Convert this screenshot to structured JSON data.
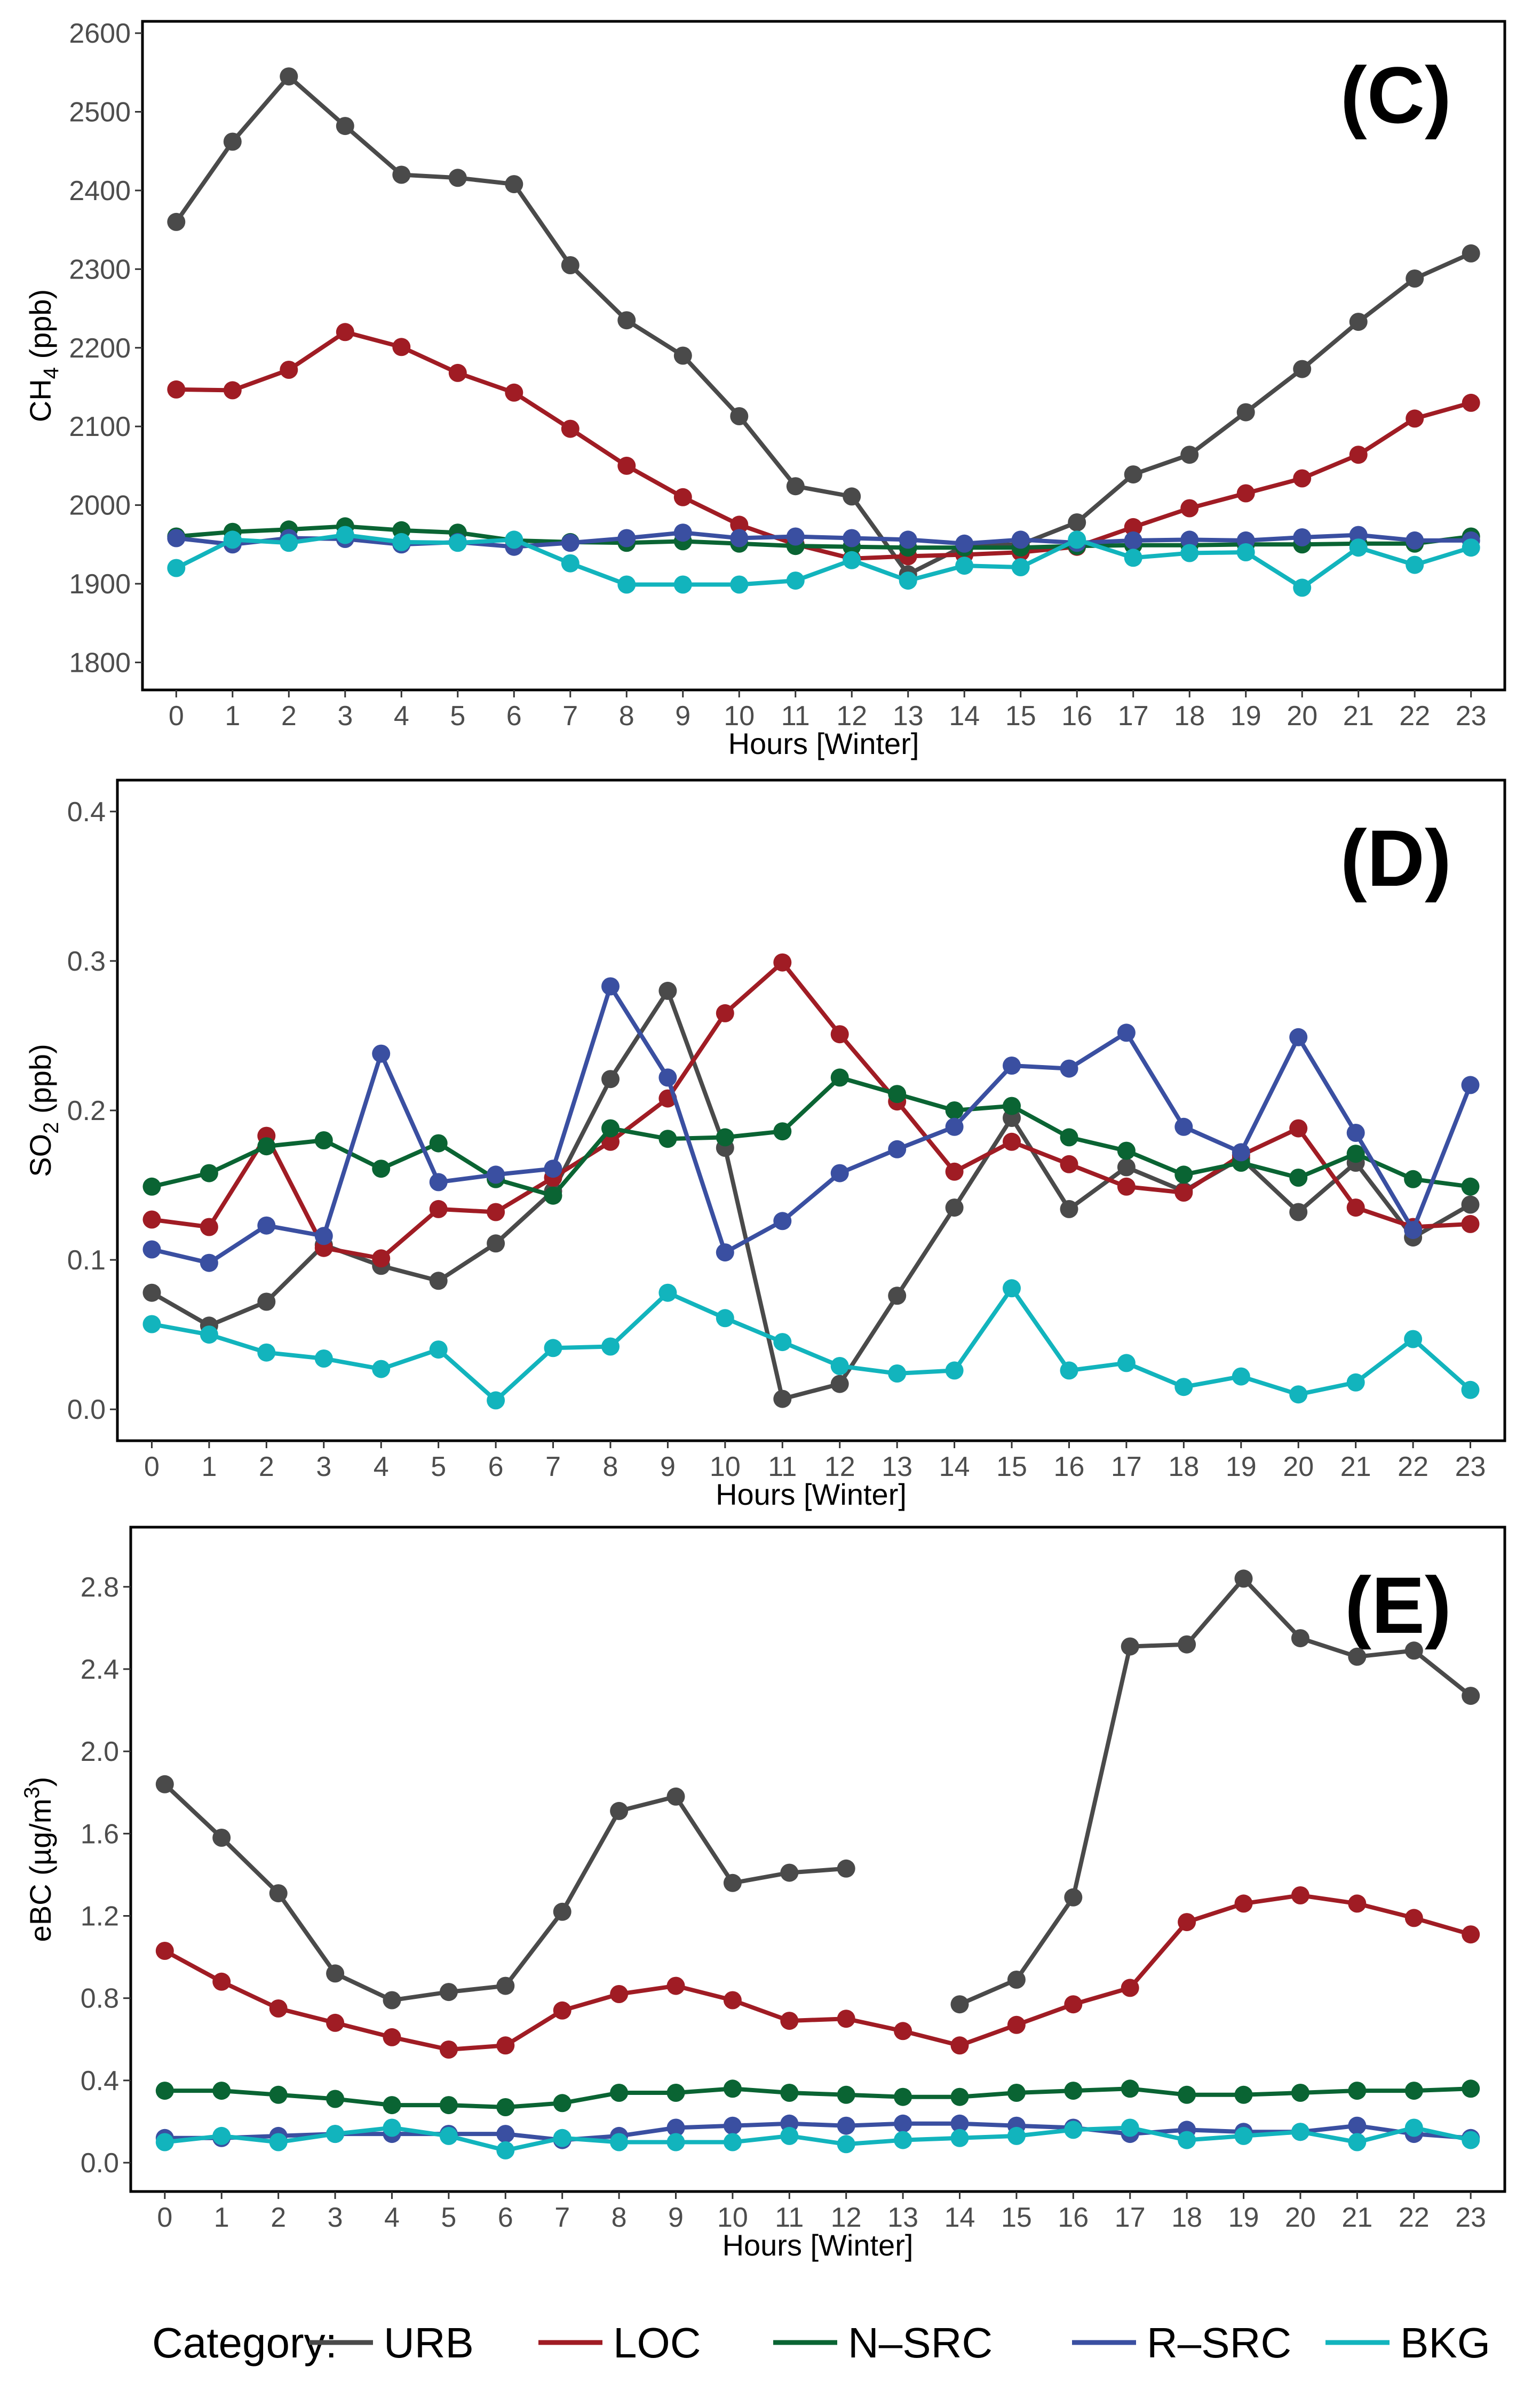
{
  "legend": {
    "title": "Category:",
    "items": [
      {
        "name": "URB",
        "color": "#4a4a4a"
      },
      {
        "name": "LOC",
        "color": "#a01c24"
      },
      {
        "name": "N–SRC",
        "color": "#0a6433"
      },
      {
        "name": "R–SRC",
        "color": "#3a4fa1"
      },
      {
        "name": "BKG",
        "color": "#12b4bd"
      }
    ]
  },
  "chart_data": [
    {
      "type": "line",
      "panel_label": "(C)",
      "xlabel": "Hours [Winter]",
      "ylabel_main": "CH",
      "ylabel_sub": "4",
      "ylabel_tail": " (ppb)",
      "x": [
        0,
        1,
        2,
        3,
        4,
        5,
        6,
        7,
        8,
        9,
        10,
        11,
        12,
        13,
        14,
        15,
        16,
        17,
        18,
        19,
        20,
        21,
        22,
        23
      ],
      "x_tick_labels": [
        "0",
        "1",
        "2",
        "3",
        "4",
        "5",
        "6",
        "7",
        "8",
        "9",
        "10",
        "11",
        "12",
        "13",
        "14",
        "15",
        "16",
        "17",
        "18",
        "19",
        "20",
        "21",
        "22",
        "23"
      ],
      "xlim": [
        -0.6,
        23.6
      ],
      "ylim": [
        1765,
        2615
      ],
      "y_ticks": [
        1800,
        1900,
        2000,
        2100,
        2200,
        2300,
        2400,
        2500,
        2600
      ],
      "y_tick_labels": [
        "1800",
        "1900",
        "2000",
        "2100",
        "2200",
        "2300",
        "2400",
        "2500",
        "2600"
      ],
      "series": [
        {
          "name": "URB",
          "values": [
            2360,
            2462,
            2545,
            2482,
            2420,
            2416,
            2408,
            2305,
            2235,
            2190,
            2113,
            2024,
            2011,
            1912,
            1948,
            1950,
            1978,
            2039,
            2064,
            2118,
            2173,
            2233,
            2288,
            2320
          ]
        },
        {
          "name": "LOC",
          "values": [
            2147,
            2146,
            2172,
            2220,
            2201,
            2168,
            2143,
            2097,
            2050,
            2010,
            1975,
            1950,
            1932,
            1935,
            1937,
            1940,
            1947,
            1972,
            1996,
            2015,
            2034,
            2064,
            2110,
            2130
          ]
        },
        {
          "name": "N–SRC",
          "values": [
            1960,
            1966,
            1969,
            1973,
            1968,
            1965,
            1955,
            1953,
            1952,
            1954,
            1951,
            1948,
            1947,
            1946,
            1946,
            1946,
            1948,
            1949,
            1949,
            1950,
            1950,
            1951,
            1951,
            1960
          ]
        },
        {
          "name": "R–SRC",
          "values": [
            1958,
            1950,
            1958,
            1957,
            1950,
            1953,
            1947,
            1952,
            1958,
            1965,
            1958,
            1960,
            1958,
            1956,
            1951,
            1956,
            1952,
            1955,
            1956,
            1955,
            1959,
            1962,
            1955,
            1955
          ]
        },
        {
          "name": "BKG",
          "values": [
            1920,
            1956,
            1952,
            1962,
            1953,
            1952,
            1956,
            1926,
            1899,
            1899,
            1899,
            1904,
            1930,
            1904,
            1923,
            1921,
            1956,
            1933,
            1939,
            1940,
            1895,
            1946,
            1924,
            1946
          ]
        }
      ]
    },
    {
      "type": "line",
      "panel_label": "(D)",
      "xlabel": "Hours [Winter]",
      "ylabel_main": "SO",
      "ylabel_sub": "2",
      "ylabel_tail": " (ppb)",
      "x": [
        0,
        1,
        2,
        3,
        4,
        5,
        6,
        7,
        8,
        9,
        10,
        11,
        12,
        13,
        14,
        15,
        16,
        17,
        18,
        19,
        20,
        21,
        22,
        23
      ],
      "x_tick_labels": [
        "0",
        "1",
        "2",
        "3",
        "4",
        "5",
        "6",
        "7",
        "8",
        "9",
        "10",
        "11",
        "12",
        "13",
        "14",
        "15",
        "16",
        "17",
        "18",
        "19",
        "20",
        "21",
        "22",
        "23"
      ],
      "xlim": [
        -0.6,
        23.6
      ],
      "ylim": [
        -0.021,
        0.421
      ],
      "y_ticks": [
        0.0,
        0.1,
        0.2,
        0.3,
        0.4
      ],
      "y_tick_labels": [
        "0.0",
        "0.1",
        "0.2",
        "0.3",
        "0.4"
      ],
      "series": [
        {
          "name": "URB",
          "values": [
            0.078,
            0.056,
            0.072,
            0.11,
            0.096,
            0.086,
            0.111,
            0.146,
            0.221,
            0.28,
            0.175,
            0.007,
            0.017,
            0.076,
            0.135,
            0.195,
            0.134,
            0.162,
            0.146,
            0.168,
            0.132,
            0.165,
            0.115,
            0.137
          ]
        },
        {
          "name": "LOC",
          "values": [
            0.127,
            0.122,
            0.183,
            0.108,
            0.101,
            0.134,
            0.132,
            0.155,
            0.179,
            0.208,
            0.265,
            0.299,
            0.251,
            0.206,
            0.159,
            0.179,
            0.164,
            0.149,
            0.145,
            0.17,
            0.188,
            0.135,
            0.122,
            0.124
          ]
        },
        {
          "name": "N–SRC",
          "values": [
            0.149,
            0.158,
            0.176,
            0.18,
            0.161,
            0.178,
            0.154,
            0.143,
            0.188,
            0.181,
            0.182,
            0.186,
            0.222,
            0.211,
            0.2,
            0.203,
            0.182,
            0.173,
            0.157,
            0.165,
            0.155,
            0.171,
            0.154,
            0.149
          ]
        },
        {
          "name": "R–SRC",
          "values": [
            0.107,
            0.098,
            0.123,
            0.116,
            0.238,
            0.152,
            0.157,
            0.161,
            0.283,
            0.222,
            0.105,
            0.126,
            0.158,
            0.174,
            0.189,
            0.23,
            0.228,
            0.252,
            0.189,
            0.172,
            0.249,
            0.185,
            0.12,
            0.217
          ]
        },
        {
          "name": "BKG",
          "values": [
            0.057,
            0.05,
            0.038,
            0.034,
            0.027,
            0.04,
            0.006,
            0.041,
            0.042,
            0.078,
            0.061,
            0.045,
            0.029,
            0.024,
            0.026,
            0.081,
            0.026,
            0.031,
            0.015,
            0.022,
            0.01,
            0.018,
            0.047,
            0.013
          ]
        }
      ]
    },
    {
      "type": "line",
      "panel_label": "(E)",
      "xlabel": "Hours [Winter]",
      "ylabel_main": "eBC (µg/m",
      "ylabel_sup": "3",
      "ylabel_tail": ")",
      "x": [
        0,
        1,
        2,
        3,
        4,
        5,
        6,
        7,
        8,
        9,
        10,
        11,
        12,
        13,
        14,
        15,
        16,
        17,
        18,
        19,
        20,
        21,
        22,
        23
      ],
      "x_tick_labels": [
        "0",
        "1",
        "2",
        "3",
        "4",
        "5",
        "6",
        "7",
        "8",
        "9",
        "10",
        "11",
        "12",
        "13",
        "14",
        "15",
        "16",
        "17",
        "18",
        "19",
        "20",
        "21",
        "22",
        "23"
      ],
      "xlim": [
        -0.6,
        23.6
      ],
      "ylim": [
        -0.14,
        3.09
      ],
      "y_ticks": [
        0.0,
        0.4,
        0.8,
        1.2,
        1.6,
        2.0,
        2.4,
        2.8
      ],
      "y_tick_labels": [
        "0.0",
        "0.4",
        "0.8",
        "1.2",
        "1.6",
        "2.0",
        "2.4",
        "2.8"
      ],
      "series": [
        {
          "name": "URB",
          "values": [
            1.84,
            1.58,
            1.31,
            0.92,
            0.79,
            0.83,
            0.86,
            1.22,
            1.71,
            1.78,
            1.36,
            1.41,
            1.43,
            null,
            0.77,
            0.89,
            1.29,
            2.51,
            2.52,
            2.84,
            2.55,
            2.46,
            2.49,
            2.27
          ]
        },
        {
          "name": "LOC",
          "values": [
            1.03,
            0.88,
            0.75,
            0.68,
            0.61,
            0.55,
            0.57,
            0.74,
            0.82,
            0.86,
            0.79,
            0.69,
            0.7,
            0.64,
            0.57,
            0.67,
            0.77,
            0.85,
            1.17,
            1.26,
            1.3,
            1.26,
            1.19,
            1.11
          ]
        },
        {
          "name": "N–SRC",
          "values": [
            0.35,
            0.35,
            0.33,
            0.31,
            0.28,
            0.28,
            0.27,
            0.29,
            0.34,
            0.34,
            0.36,
            0.34,
            0.33,
            0.32,
            0.32,
            0.34,
            0.35,
            0.36,
            0.33,
            0.33,
            0.34,
            0.35,
            0.35,
            0.36
          ]
        },
        {
          "name": "R–SRC",
          "values": [
            0.12,
            0.12,
            0.13,
            0.14,
            0.14,
            0.14,
            0.14,
            0.11,
            0.13,
            0.17,
            0.18,
            0.19,
            0.18,
            0.19,
            0.19,
            0.18,
            0.17,
            0.14,
            0.16,
            0.15,
            0.15,
            0.18,
            0.14,
            0.12
          ]
        },
        {
          "name": "BKG",
          "values": [
            0.1,
            0.13,
            0.1,
            0.14,
            0.17,
            0.13,
            0.06,
            0.12,
            0.1,
            0.1,
            0.1,
            0.13,
            0.09,
            0.11,
            0.12,
            0.13,
            0.16,
            0.17,
            0.11,
            0.13,
            0.15,
            0.1,
            0.17,
            0.11
          ]
        }
      ]
    }
  ]
}
